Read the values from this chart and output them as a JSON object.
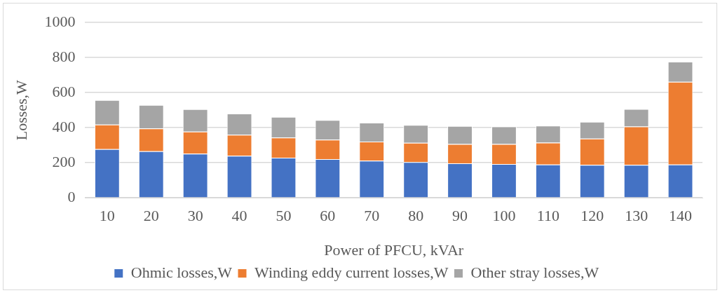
{
  "chart_data": {
    "type": "bar",
    "stacked": true,
    "xlabel": "Power of PFCU, kVAr",
    "ylabel": "Losses,W",
    "categories": [
      "10",
      "20",
      "30",
      "40",
      "50",
      "60",
      "70",
      "80",
      "90",
      "100",
      "110",
      "120",
      "130",
      "140"
    ],
    "series": [
      {
        "name": "Ohmic losses,W",
        "color": "#4472c4",
        "values": [
          278,
          266,
          252,
          240,
          229,
          221,
          212,
          204,
          197,
          193,
          190,
          188,
          188,
          190
        ]
      },
      {
        "name": "Winding eddy current losses,W",
        "color": "#ed7d31",
        "values": [
          140,
          130,
          126,
          120,
          115,
          111,
          109,
          110,
          110,
          114,
          125,
          150,
          219,
          472
        ]
      },
      {
        "name": "Other stray losses,W",
        "color": "#a5a5a5",
        "values": [
          140,
          134,
          128,
          121,
          118,
          112,
          108,
          102,
          103,
          100,
          97,
          96,
          100,
          115
        ]
      }
    ],
    "ylim": [
      0,
      1000
    ],
    "yticks": [
      0,
      200,
      400,
      600,
      800,
      1000
    ],
    "grid": "y",
    "legend": "bottom"
  }
}
